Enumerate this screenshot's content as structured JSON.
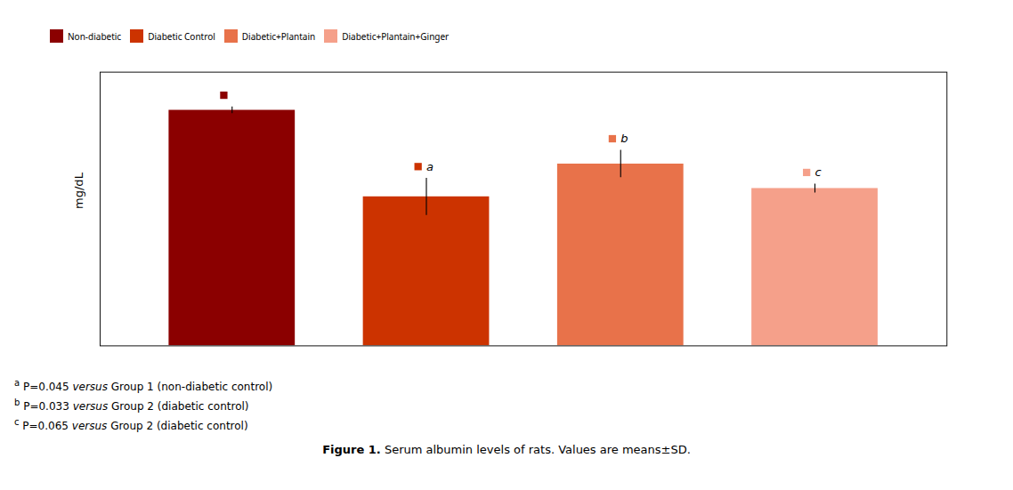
{
  "chart_data": {
    "type": "bar",
    "categories": [
      "Non-diabetic",
      "Diabetic Control",
      "Diabetic+Plantain",
      "Diabetic+Plantain+Ginger"
    ],
    "values": [
      4.82,
      3.05,
      3.72,
      3.22
    ],
    "errors": [
      0.07,
      0.38,
      0.28,
      0.09
    ],
    "colors": [
      "#8B0000",
      "#CC3300",
      "#E8724A",
      "#F5A08A"
    ],
    "ylabel": "mg/dL",
    "ylim": [
      0,
      5.6
    ],
    "yticks": [],
    "tick_labels": false,
    "grid": false,
    "legend": "top",
    "significance_labels": [
      null,
      "a",
      "b",
      "c"
    ],
    "footnotes": [
      {
        "sup": "a",
        "pval": "P=0.045",
        "versus": "versus",
        "tail": "Group 1 (non-diabetic control)"
      },
      {
        "sup": "b",
        "pval": "P=0.033",
        "versus": "versus",
        "tail": "Group 2 (diabetic control)"
      },
      {
        "sup": "c",
        "pval": "P=0.065",
        "versus": "versus",
        "tail": "Group 2 (diabetic control)"
      }
    ],
    "caption": {
      "bold": "Figure 1.",
      "text": "Serum albumin levels of rats. Values are means±SD."
    }
  }
}
